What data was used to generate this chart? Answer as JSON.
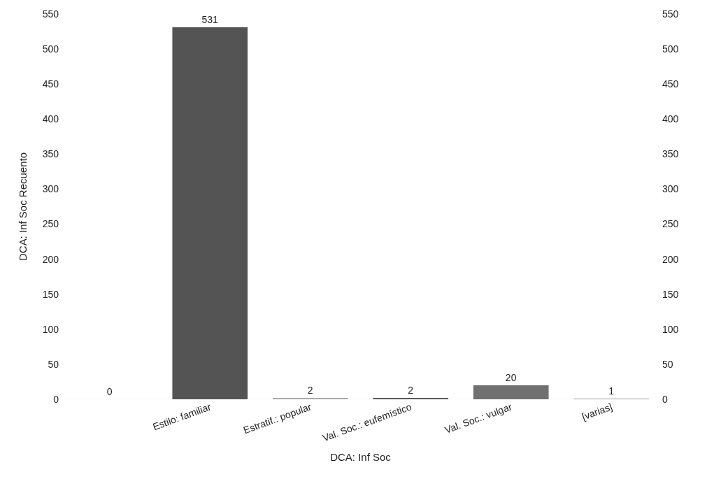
{
  "chart_data": {
    "type": "bar",
    "xlabel": "DCA: Inf Soc",
    "ylabel": "DCA: Inf Soc Recuento",
    "categories": [
      null,
      "Estilo: familiar",
      "Estratif.: popular",
      "Val. Soc.: eufemístico",
      "Val. Soc.: vulgar",
      "[varias]"
    ],
    "values": [
      0,
      531,
      2,
      2,
      20,
      1
    ],
    "colors": [
      "#888888",
      "#545454",
      "#a8a8a8",
      "#5a5a5a",
      "#707070",
      "#999999"
    ],
    "data_labels": true,
    "ylim": [
      0,
      550
    ],
    "yticks": [
      0,
      50,
      100,
      150,
      200,
      250,
      300,
      350,
      400,
      450,
      500,
      550
    ],
    "y2lim": [
      0,
      550
    ],
    "y2ticks": [
      0,
      50,
      100,
      150,
      200,
      250,
      300,
      350,
      400,
      450,
      500,
      550
    ]
  }
}
